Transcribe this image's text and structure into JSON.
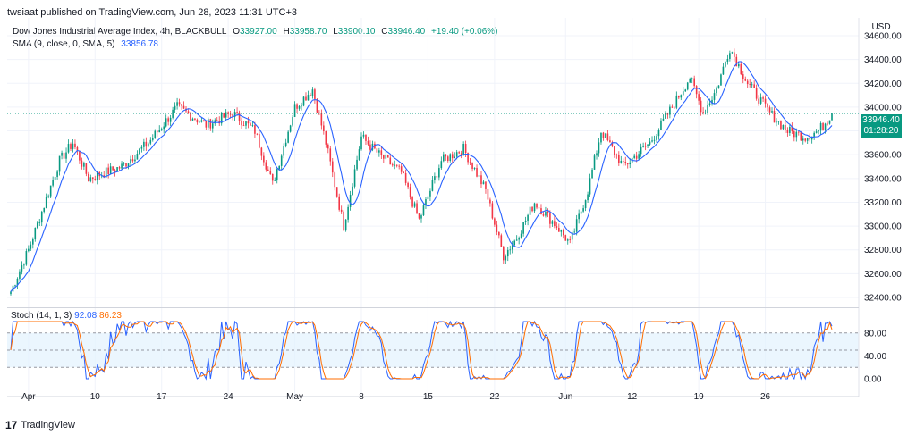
{
  "header": {
    "published_line": "twsiaat published on TradingView.com, Jun 28, 2023 11:31 UTC+3"
  },
  "legend": {
    "symbol": "Dow Jones Industrial Average Index, 4h, BLACKBULL",
    "open_label": "O",
    "open": "33927.00",
    "high_label": "H",
    "high": "33958.70",
    "low_label": "L",
    "low": "33900.10",
    "close_label": "C",
    "close": "33946.40",
    "change": "+19.40 (+0.06%)",
    "sma_label": "SMA (9, close, 0, SMA, 5)",
    "sma_value": "33856.78"
  },
  "stoch_legend": {
    "label": "Stoch (14, 1, 3)",
    "k_value": "92.08",
    "d_value": "86.23"
  },
  "price_badge": {
    "price": "33946.40",
    "countdown": "01:28:20"
  },
  "footer": {
    "brand": "TradingView",
    "logo_glyph": "17"
  },
  "colors": {
    "up": "#089981",
    "down": "#f23645",
    "sma": "#2962ff",
    "stoch_k": "#2962ff",
    "stoch_d": "#ff6d00",
    "stoch_band": "#e3f2fd",
    "grid": "#f0f3fa",
    "price_line": "#089981"
  },
  "chart_data": [
    {
      "type": "candlestick",
      "currency": "USD",
      "y_range": [
        32400,
        34600
      ],
      "y_ticks": [
        32400,
        32600,
        32800,
        33000,
        33200,
        33400,
        33600,
        33800,
        34000,
        34200,
        34400,
        34600
      ],
      "x_ticks": [
        "Apr",
        "10",
        "17",
        "24",
        "May",
        "8",
        "15",
        "22",
        "Jun",
        "12",
        "19",
        "26"
      ],
      "last_price": 33946.4,
      "trend_anchors": [
        {
          "i": 0,
          "p": 32450
        },
        {
          "i": 8,
          "p": 32800
        },
        {
          "i": 22,
          "p": 33550
        },
        {
          "i": 28,
          "p": 33700
        },
        {
          "i": 35,
          "p": 33400
        },
        {
          "i": 50,
          "p": 33500
        },
        {
          "i": 62,
          "p": 33700
        },
        {
          "i": 75,
          "p": 34000
        },
        {
          "i": 88,
          "p": 33850
        },
        {
          "i": 100,
          "p": 33950
        },
        {
          "i": 110,
          "p": 33800
        },
        {
          "i": 118,
          "p": 33350
        },
        {
          "i": 128,
          "p": 34000
        },
        {
          "i": 136,
          "p": 34150
        },
        {
          "i": 142,
          "p": 33700
        },
        {
          "i": 150,
          "p": 33000
        },
        {
          "i": 158,
          "p": 33750
        },
        {
          "i": 166,
          "p": 33600
        },
        {
          "i": 176,
          "p": 33450
        },
        {
          "i": 184,
          "p": 33050
        },
        {
          "i": 194,
          "p": 33550
        },
        {
          "i": 204,
          "p": 33650
        },
        {
          "i": 214,
          "p": 33300
        },
        {
          "i": 222,
          "p": 32750
        },
        {
          "i": 228,
          "p": 32900
        },
        {
          "i": 236,
          "p": 33200
        },
        {
          "i": 246,
          "p": 33000
        },
        {
          "i": 252,
          "p": 32850
        },
        {
          "i": 260,
          "p": 33300
        },
        {
          "i": 266,
          "p": 33800
        },
        {
          "i": 276,
          "p": 33500
        },
        {
          "i": 288,
          "p": 33700
        },
        {
          "i": 298,
          "p": 34000
        },
        {
          "i": 306,
          "p": 34250
        },
        {
          "i": 312,
          "p": 33950
        },
        {
          "i": 318,
          "p": 34150
        },
        {
          "i": 324,
          "p": 34500
        },
        {
          "i": 332,
          "p": 34200
        },
        {
          "i": 342,
          "p": 33950
        },
        {
          "i": 350,
          "p": 33800
        },
        {
          "i": 358,
          "p": 33750
        },
        {
          "i": 364,
          "p": 33800
        },
        {
          "i": 370,
          "p": 33946
        }
      ],
      "sma": {
        "period": 9,
        "last": 33856.78
      }
    },
    {
      "type": "line",
      "title": "Stoch (14, 1, 3)",
      "y_range": [
        0,
        100
      ],
      "y_ticks": [
        0,
        40,
        80
      ],
      "bands": [
        20,
        50,
        80
      ],
      "k_last": 92.08,
      "d_last": 86.23
    }
  ]
}
